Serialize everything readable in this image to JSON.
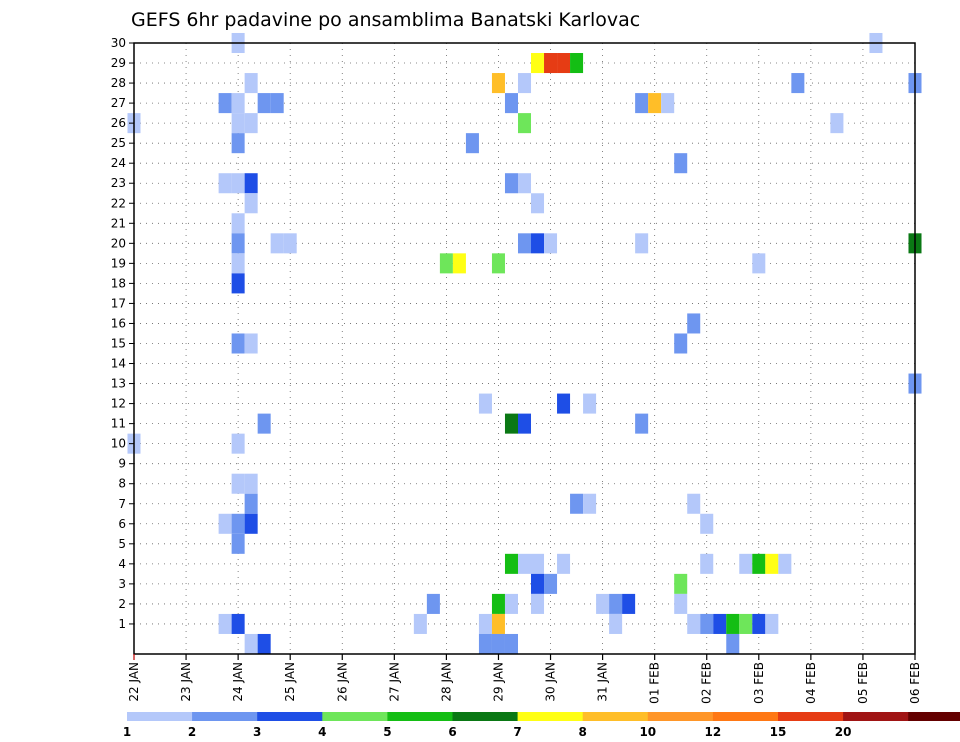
{
  "chart_data": {
    "type": "heatmap",
    "title": "GEFS 6hr padavine po ansamblima Banatski Karlovac",
    "x_labels": [
      "22 JAN",
      "23 JAN",
      "24 JAN",
      "25 JAN",
      "26 JAN",
      "27 JAN",
      "28 JAN",
      "29 JAN",
      "30 JAN",
      "31 JAN",
      "01 FEB",
      "02 FEB",
      "03 FEB",
      "04 FEB",
      "05 FEB",
      "06 FEB"
    ],
    "y_labels": [
      "1",
      "2",
      "3",
      "4",
      "5",
      "6",
      "7",
      "8",
      "9",
      "10",
      "11",
      "12",
      "13",
      "14",
      "15",
      "16",
      "17",
      "18",
      "19",
      "20",
      "21",
      "22",
      "23",
      "24",
      "25",
      "26",
      "27",
      "28",
      "29",
      "30"
    ],
    "x_range": [
      "22 JAN 00",
      "06 FEB 00"
    ],
    "y_range": [
      0,
      30
    ],
    "grid": true,
    "colorbar": {
      "labels": [
        "1",
        "2",
        "3",
        "4",
        "5",
        "6",
        "7",
        "8",
        "10",
        "12",
        "15",
        "20"
      ],
      "colors": [
        "#b4c8fa",
        "#6e96f0",
        "#1e4ee6",
        "#6ee65a",
        "#14be14",
        "#0a7814",
        "#ffff14",
        "#ffbe28",
        "#ff9628",
        "#ff7814",
        "#e63c14",
        "#a01414",
        "#640000"
      ]
    },
    "cells": [
      {
        "t": "24 JAN 00",
        "m": 30,
        "c": 1
      },
      {
        "t": "05 FEB 06",
        "m": 30,
        "c": 1
      },
      {
        "t": "29 JAN 18",
        "m": 29,
        "c": 7
      },
      {
        "t": "30 JAN 00",
        "m": 29,
        "c": 11
      },
      {
        "t": "30 JAN 06",
        "m": 29,
        "c": 11
      },
      {
        "t": "30 JAN 12",
        "m": 29,
        "c": 5
      },
      {
        "t": "24 JAN 06",
        "m": 28,
        "c": 1
      },
      {
        "t": "29 JAN 00",
        "m": 28,
        "c": 8
      },
      {
        "t": "29 JAN 12",
        "m": 28,
        "c": 1
      },
      {
        "t": "03 FEB 18",
        "m": 28,
        "c": 2
      },
      {
        "t": "06 FEB 00",
        "m": 28,
        "c": 2
      },
      {
        "t": "23 JAN 18",
        "m": 27,
        "c": 2
      },
      {
        "t": "24 JAN 00",
        "m": 27,
        "c": 1
      },
      {
        "t": "24 JAN 12",
        "m": 27,
        "c": 2
      },
      {
        "t": "24 JAN 18",
        "m": 27,
        "c": 2
      },
      {
        "t": "29 JAN 06",
        "m": 27,
        "c": 2
      },
      {
        "t": "31 JAN 18",
        "m": 27,
        "c": 2
      },
      {
        "t": "01 FEB 00",
        "m": 27,
        "c": 8
      },
      {
        "t": "01 FEB 06",
        "m": 27,
        "c": 1
      },
      {
        "t": "22 JAN 00",
        "m": 26,
        "c": 1
      },
      {
        "t": "24 JAN 00",
        "m": 26,
        "c": 1
      },
      {
        "t": "24 JAN 06",
        "m": 26,
        "c": 1
      },
      {
        "t": "29 JAN 12",
        "m": 26,
        "c": 4
      },
      {
        "t": "04 FEB 12",
        "m": 26,
        "c": 1
      },
      {
        "t": "24 JAN 00",
        "m": 25,
        "c": 2
      },
      {
        "t": "28 JAN 12",
        "m": 25,
        "c": 2
      },
      {
        "t": "01 FEB 12",
        "m": 24,
        "c": 2
      },
      {
        "t": "23 JAN 18",
        "m": 23,
        "c": 1
      },
      {
        "t": "24 JAN 00",
        "m": 23,
        "c": 1
      },
      {
        "t": "24 JAN 06",
        "m": 23,
        "c": 3
      },
      {
        "t": "29 JAN 06",
        "m": 23,
        "c": 2
      },
      {
        "t": "29 JAN 12",
        "m": 23,
        "c": 1
      },
      {
        "t": "24 JAN 06",
        "m": 22,
        "c": 1
      },
      {
        "t": "29 JAN 18",
        "m": 22,
        "c": 1
      },
      {
        "t": "24 JAN 00",
        "m": 21,
        "c": 1
      },
      {
        "t": "24 JAN 00",
        "m": 20,
        "c": 2
      },
      {
        "t": "24 JAN 18",
        "m": 20,
        "c": 1
      },
      {
        "t": "25 JAN 00",
        "m": 20,
        "c": 1
      },
      {
        "t": "29 JAN 12",
        "m": 20,
        "c": 2
      },
      {
        "t": "29 JAN 18",
        "m": 20,
        "c": 3
      },
      {
        "t": "30 JAN 00",
        "m": 20,
        "c": 1
      },
      {
        "t": "31 JAN 18",
        "m": 20,
        "c": 1
      },
      {
        "t": "06 FEB 00",
        "m": 20,
        "c": 6
      },
      {
        "t": "24 JAN 00",
        "m": 19,
        "c": 1
      },
      {
        "t": "28 JAN 00",
        "m": 19,
        "c": 4
      },
      {
        "t": "28 JAN 06",
        "m": 19,
        "c": 7
      },
      {
        "t": "29 JAN 00",
        "m": 19,
        "c": 4
      },
      {
        "t": "03 FEB 00",
        "m": 19,
        "c": 1
      },
      {
        "t": "24 JAN 00",
        "m": 18,
        "c": 3
      },
      {
        "t": "01 FEB 18",
        "m": 16,
        "c": 2
      },
      {
        "t": "24 JAN 00",
        "m": 15,
        "c": 2
      },
      {
        "t": "24 JAN 06",
        "m": 15,
        "c": 1
      },
      {
        "t": "01 FEB 12",
        "m": 15,
        "c": 2
      },
      {
        "t": "06 FEB 00",
        "m": 13,
        "c": 2
      },
      {
        "t": "28 JAN 18",
        "m": 12,
        "c": 1
      },
      {
        "t": "30 JAN 06",
        "m": 12,
        "c": 3
      },
      {
        "t": "30 JAN 18",
        "m": 12,
        "c": 1
      },
      {
        "t": "24 JAN 12",
        "m": 11,
        "c": 2
      },
      {
        "t": "29 JAN 06",
        "m": 11,
        "c": 6
      },
      {
        "t": "29 JAN 12",
        "m": 11,
        "c": 3
      },
      {
        "t": "31 JAN 18",
        "m": 11,
        "c": 2
      },
      {
        "t": "22 JAN 00",
        "m": 10,
        "c": 1
      },
      {
        "t": "24 JAN 00",
        "m": 10,
        "c": 1
      },
      {
        "t": "24 JAN 00",
        "m": 8,
        "c": 1
      },
      {
        "t": "24 JAN 06",
        "m": 8,
        "c": 1
      },
      {
        "t": "24 JAN 06",
        "m": 7,
        "c": 2
      },
      {
        "t": "30 JAN 12",
        "m": 7,
        "c": 2
      },
      {
        "t": "30 JAN 18",
        "m": 7,
        "c": 1
      },
      {
        "t": "01 FEB 18",
        "m": 7,
        "c": 1
      },
      {
        "t": "23 JAN 18",
        "m": 6,
        "c": 1
      },
      {
        "t": "24 JAN 00",
        "m": 6,
        "c": 2
      },
      {
        "t": "24 JAN 06",
        "m": 6,
        "c": 3
      },
      {
        "t": "02 FEB 00",
        "m": 6,
        "c": 1
      },
      {
        "t": "24 JAN 00",
        "m": 5,
        "c": 2
      },
      {
        "t": "29 JAN 06",
        "m": 4,
        "c": 5
      },
      {
        "t": "29 JAN 12",
        "m": 4,
        "c": 1
      },
      {
        "t": "29 JAN 18",
        "m": 4,
        "c": 1
      },
      {
        "t": "30 JAN 06",
        "m": 4,
        "c": 1
      },
      {
        "t": "02 FEB 00",
        "m": 4,
        "c": 1
      },
      {
        "t": "02 FEB 18",
        "m": 4,
        "c": 1
      },
      {
        "t": "03 FEB 00",
        "m": 4,
        "c": 5
      },
      {
        "t": "03 FEB 06",
        "m": 4,
        "c": 7
      },
      {
        "t": "03 FEB 12",
        "m": 4,
        "c": 1
      },
      {
        "t": "29 JAN 18",
        "m": 3,
        "c": 3
      },
      {
        "t": "30 JAN 00",
        "m": 3,
        "c": 2
      },
      {
        "t": "01 FEB 12",
        "m": 3,
        "c": 4
      },
      {
        "t": "27 JAN 18",
        "m": 2,
        "c": 2
      },
      {
        "t": "29 JAN 00",
        "m": 2,
        "c": 5
      },
      {
        "t": "29 JAN 06",
        "m": 2,
        "c": 1
      },
      {
        "t": "29 JAN 18",
        "m": 2,
        "c": 1
      },
      {
        "t": "31 JAN 00",
        "m": 2,
        "c": 1
      },
      {
        "t": "31 JAN 06",
        "m": 2,
        "c": 2
      },
      {
        "t": "31 JAN 12",
        "m": 2,
        "c": 3
      },
      {
        "t": "01 FEB 12",
        "m": 2,
        "c": 1
      },
      {
        "t": "23 JAN 18",
        "m": 1,
        "c": 1
      },
      {
        "t": "24 JAN 00",
        "m": 1,
        "c": 3
      },
      {
        "t": "27 JAN 12",
        "m": 1,
        "c": 1
      },
      {
        "t": "28 JAN 18",
        "m": 1,
        "c": 1
      },
      {
        "t": "29 JAN 00",
        "m": 1,
        "c": 8
      },
      {
        "t": "31 JAN 06",
        "m": 1,
        "c": 1
      },
      {
        "t": "01 FEB 18",
        "m": 1,
        "c": 1
      },
      {
        "t": "02 FEB 00",
        "m": 1,
        "c": 2
      },
      {
        "t": "02 FEB 06",
        "m": 1,
        "c": 3
      },
      {
        "t": "02 FEB 12",
        "m": 1,
        "c": 5
      },
      {
        "t": "02 FEB 18",
        "m": 1,
        "c": 4
      },
      {
        "t": "03 FEB 00",
        "m": 1,
        "c": 3
      },
      {
        "t": "03 FEB 06",
        "m": 1,
        "c": 1
      },
      {
        "t": "24 JAN 06",
        "m": 0,
        "c": 1
      },
      {
        "t": "24 JAN 12",
        "m": 0,
        "c": 3
      },
      {
        "t": "28 JAN 18",
        "m": 0,
        "c": 2
      },
      {
        "t": "29 JAN 00",
        "m": 0,
        "c": 2
      },
      {
        "t": "29 JAN 06",
        "m": 0,
        "c": 2
      },
      {
        "t": "02 FEB 12",
        "m": 0,
        "c": 2
      }
    ]
  }
}
